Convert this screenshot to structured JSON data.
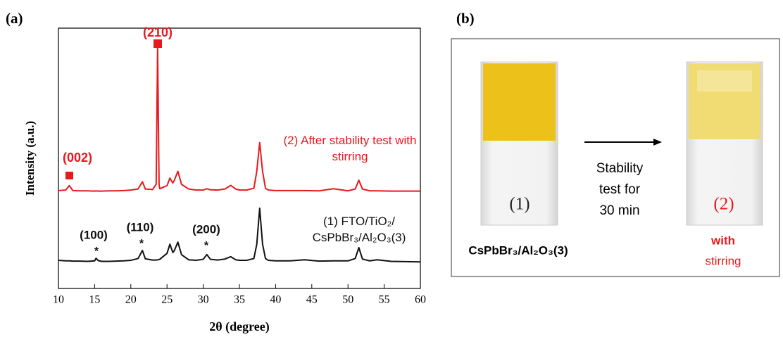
{
  "panel_a_label": "(a)",
  "chart_data": {
    "type": "line",
    "xlabel": "2θ (degree)",
    "ylabel": "Intensity (a.u.)",
    "xlim": [
      10,
      60
    ],
    "xticks": [
      10,
      15,
      20,
      25,
      30,
      35,
      40,
      45,
      50,
      55,
      60
    ],
    "ylim": [
      0,
      100
    ],
    "x": [
      10,
      11,
      11.5,
      12,
      13,
      14,
      15,
      15.2,
      15.5,
      16,
      17,
      18,
      19,
      20,
      21,
      21.6,
      22,
      23,
      23.5,
      23.7,
      23.9,
      24,
      25,
      25.4,
      25.8,
      26,
      26.5,
      27,
      28,
      29,
      30,
      30.5,
      31,
      32,
      33,
      33.8,
      34.5,
      35,
      36,
      37,
      37.4,
      37.8,
      38.2,
      38.6,
      39,
      40,
      42,
      44,
      46,
      48,
      50,
      51,
      51.5,
      52,
      53,
      54,
      56,
      58,
      60
    ],
    "series": [
      {
        "name": "(2) After stability test with stirring",
        "color": "#e8191d",
        "values": [
          37.6,
          37.8,
          39.5,
          37.6,
          37.5,
          37.5,
          37.4,
          37.5,
          37.4,
          37.4,
          37.5,
          37.5,
          37.6,
          37.8,
          38.2,
          41,
          38.2,
          38.0,
          40,
          92.4,
          40,
          38.3,
          39.5,
          42.4,
          40.5,
          41.5,
          45,
          40,
          38.2,
          37.8,
          37.8,
          38.3,
          37.9,
          37.8,
          38.2,
          39.6,
          38.2,
          37.8,
          37.8,
          38.5,
          45,
          56,
          45,
          38.5,
          37.8,
          37.6,
          37.6,
          37.6,
          37.5,
          38.3,
          37.5,
          38.2,
          41.6,
          38.2,
          37.5,
          37.5,
          37.4,
          37.4,
          37.4
        ]
      },
      {
        "name": "(1) FTO/TiO₂/ CsPbBr₃/Al₂O₃(3)",
        "color": "#111111",
        "values": [
          10.8,
          10.6,
          10.6,
          10.5,
          10.5,
          10.4,
          10.6,
          11.6,
          10.7,
          10.4,
          10.4,
          10.5,
          10.6,
          10.8,
          11.5,
          14.6,
          11.4,
          10.9,
          10.9,
          11.0,
          11.1,
          11.2,
          13.5,
          17.0,
          13.8,
          14.5,
          17.8,
          13.0,
          11.0,
          10.8,
          11.2,
          13.0,
          11.2,
          10.9,
          11.3,
          12.2,
          11.0,
          10.8,
          10.8,
          11.5,
          17,
          30.8,
          17,
          11.5,
          10.8,
          10.6,
          10.6,
          11.0,
          10.5,
          10.6,
          10.6,
          11.5,
          15.7,
          11.3,
          10.6,
          11.0,
          10.4,
          10.3,
          10.2
        ]
      }
    ],
    "annotations": [
      "(210)",
      "(002)",
      "(100)",
      "(110)",
      "(200)",
      "*",
      "*",
      "*"
    ]
  },
  "panel_b": {
    "label": "(b)",
    "sample_label": "CsPbBr₃/Al₂O₃(3)",
    "vial_1_label": "(1)",
    "vial_2_label": "(2)",
    "arrow_text": [
      "Stability",
      "test for",
      "30 min"
    ],
    "condition_bold": "with",
    "condition": "stirring"
  }
}
